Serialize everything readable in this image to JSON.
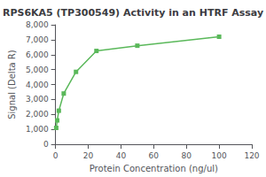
{
  "chart_data": {
    "type": "line",
    "title": "RPS6KA5 (TP300549) Activity in an HTRF Assay",
    "xlabel": "Protein Concentration (ng/ul)",
    "ylabel": "Signal (Delta R)",
    "x": [
      0.4,
      1.0,
      2.0,
      5.0,
      12.5,
      25,
      50,
      100
    ],
    "values": [
      1100,
      1600,
      2250,
      3400,
      4850,
      6250,
      6600,
      7200
    ],
    "color": "#5ab85a",
    "marker": "square",
    "xlim": [
      0,
      120
    ],
    "ylim": [
      0,
      8000
    ],
    "xticks": [
      0,
      20,
      40,
      60,
      80,
      100,
      120
    ],
    "yticks": [
      0,
      1000,
      2000,
      3000,
      4000,
      5000,
      6000,
      7000,
      8000
    ],
    "grid": false
  }
}
